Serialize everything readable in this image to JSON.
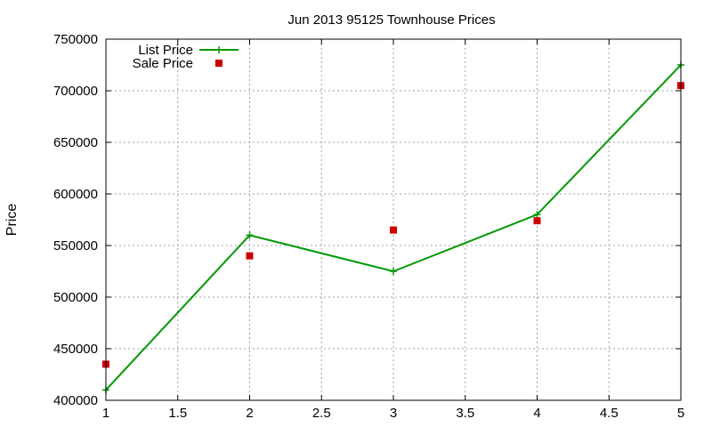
{
  "chart_data": {
    "type": "line",
    "title": "Jun 2013 95125 Townhouse Prices",
    "xlabel": "",
    "ylabel": "Price",
    "xlim": [
      1,
      5
    ],
    "ylim": [
      400000,
      750000
    ],
    "x_ticks": [
      "1",
      "1.5",
      "2",
      "2.5",
      "3",
      "3.5",
      "4",
      "4.5",
      "5"
    ],
    "y_ticks": [
      "400000",
      "450000",
      "500000",
      "550000",
      "600000",
      "650000",
      "700000",
      "750000"
    ],
    "grid": true,
    "legend_position": "top-left",
    "series": [
      {
        "name": "List Price",
        "style": "linespoints",
        "marker": "plus",
        "color": "#009900",
        "x": [
          1,
          2,
          3,
          4,
          5
        ],
        "y": [
          410000,
          560000,
          525000,
          580000,
          725000
        ]
      },
      {
        "name": "Sale Price",
        "style": "points",
        "marker": "square",
        "color": "#cc0000",
        "x": [
          1,
          2,
          3,
          4,
          5
        ],
        "y": [
          435000,
          540000,
          565000,
          574000,
          705000
        ]
      }
    ]
  }
}
